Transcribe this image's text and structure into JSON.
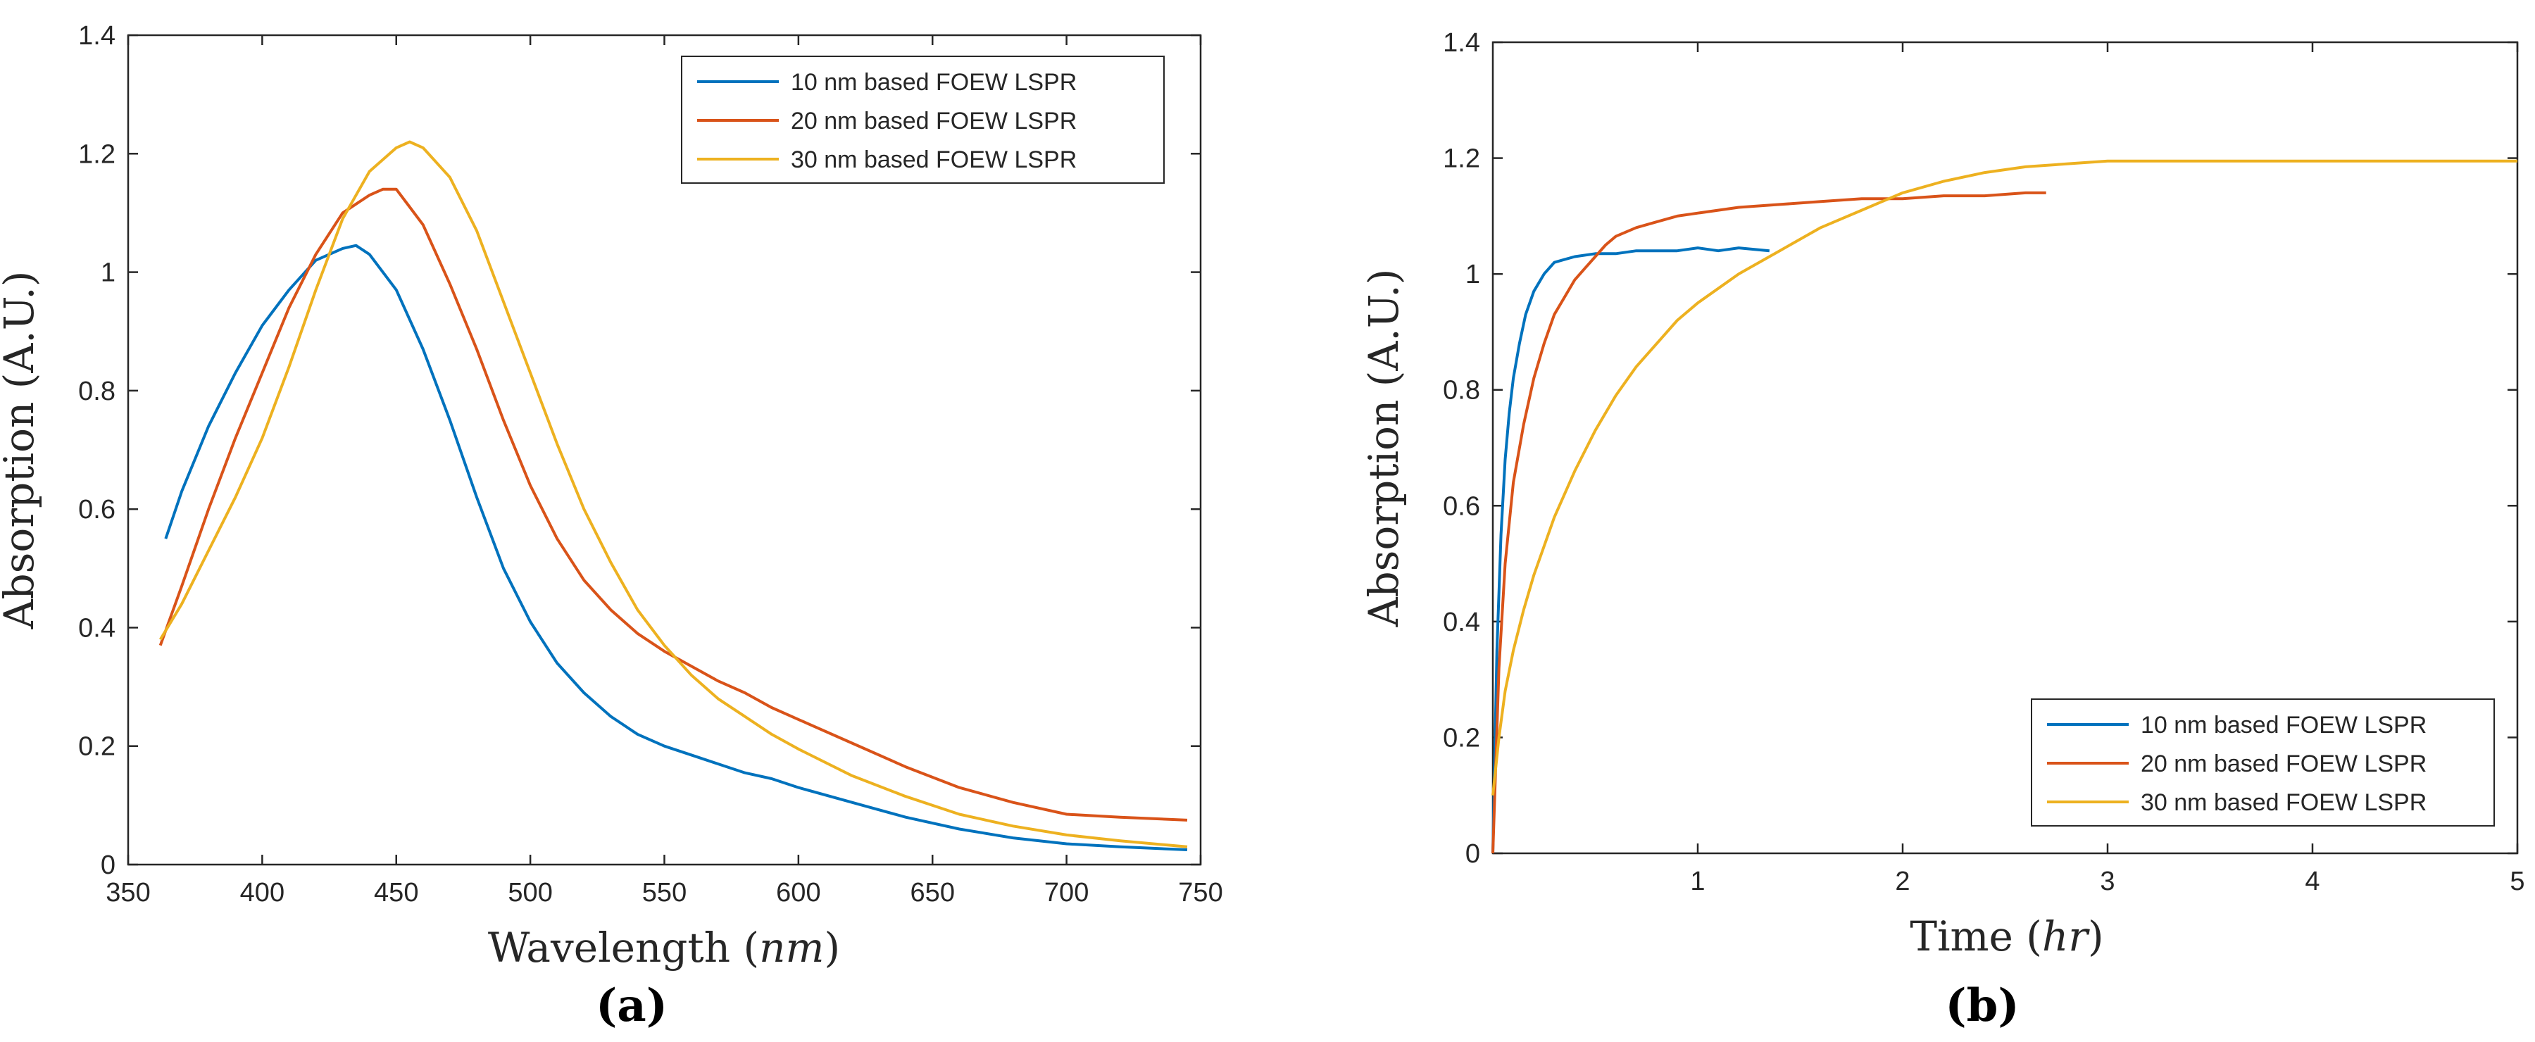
{
  "colors": {
    "s10": "#0072BD",
    "s20": "#D95319",
    "s30": "#EDB120",
    "axis": "#262626"
  },
  "chart_data": [
    {
      "type": "line",
      "panel_label": "(a)",
      "xlabel_main": "Wavelength ",
      "xlabel_unit": "nm",
      "ylabel": "Absorption (A.U.)",
      "xlim": [
        350,
        750
      ],
      "ylim": [
        0,
        1.4
      ],
      "xticks": [
        350,
        400,
        450,
        500,
        550,
        600,
        650,
        700,
        750
      ],
      "xtick_labels": [
        "350",
        "400",
        "450",
        "500",
        "550",
        "600",
        "650",
        "700",
        "750"
      ],
      "yticks": [
        0,
        0.2,
        0.4,
        0.6,
        0.8,
        1.0,
        1.2,
        1.4
      ],
      "ytick_labels": [
        "0",
        "0.2",
        "0.4",
        "0.6",
        "0.8",
        "1",
        "1.2",
        "1.4"
      ],
      "legend_position": "top-right",
      "series": [
        {
          "name": "10 nm based FOEW LSPR",
          "color": "s10",
          "x": [
            364,
            370,
            380,
            390,
            400,
            410,
            420,
            430,
            435,
            440,
            450,
            460,
            470,
            480,
            490,
            500,
            510,
            520,
            530,
            540,
            550,
            560,
            570,
            580,
            590,
            600,
            620,
            640,
            660,
            680,
            700,
            720,
            745
          ],
          "y": [
            0.55,
            0.63,
            0.74,
            0.83,
            0.91,
            0.97,
            1.02,
            1.04,
            1.045,
            1.03,
            0.97,
            0.87,
            0.75,
            0.62,
            0.5,
            0.41,
            0.34,
            0.29,
            0.25,
            0.22,
            0.2,
            0.185,
            0.17,
            0.155,
            0.145,
            0.13,
            0.105,
            0.08,
            0.06,
            0.045,
            0.035,
            0.03,
            0.025
          ]
        },
        {
          "name": "20 nm based FOEW LSPR",
          "color": "s20",
          "x": [
            362,
            370,
            380,
            390,
            400,
            410,
            420,
            430,
            440,
            445,
            450,
            455,
            460,
            470,
            480,
            490,
            500,
            510,
            520,
            530,
            540,
            550,
            560,
            570,
            580,
            590,
            600,
            620,
            640,
            660,
            680,
            700,
            720,
            745
          ],
          "y": [
            0.37,
            0.47,
            0.6,
            0.72,
            0.83,
            0.94,
            1.03,
            1.1,
            1.13,
            1.14,
            1.14,
            1.11,
            1.08,
            0.98,
            0.87,
            0.75,
            0.64,
            0.55,
            0.48,
            0.43,
            0.39,
            0.36,
            0.335,
            0.31,
            0.29,
            0.265,
            0.245,
            0.205,
            0.165,
            0.13,
            0.105,
            0.085,
            0.08,
            0.075
          ]
        },
        {
          "name": "30 nm based FOEW LSPR",
          "color": "s30",
          "x": [
            362,
            370,
            380,
            390,
            400,
            410,
            420,
            430,
            440,
            450,
            455,
            460,
            470,
            480,
            490,
            500,
            510,
            520,
            530,
            540,
            550,
            560,
            570,
            580,
            590,
            600,
            620,
            640,
            660,
            680,
            700,
            720,
            745
          ],
          "y": [
            0.38,
            0.44,
            0.53,
            0.62,
            0.72,
            0.84,
            0.97,
            1.09,
            1.17,
            1.21,
            1.22,
            1.21,
            1.16,
            1.07,
            0.95,
            0.83,
            0.71,
            0.6,
            0.51,
            0.43,
            0.37,
            0.32,
            0.28,
            0.25,
            0.22,
            0.195,
            0.15,
            0.115,
            0.085,
            0.065,
            0.05,
            0.04,
            0.03
          ]
        }
      ]
    },
    {
      "type": "line",
      "panel_label": "(b)",
      "xlabel_main": "Time ",
      "xlabel_unit": "hr",
      "ylabel": "Absorption (A.U.)",
      "xlim": [
        0,
        5
      ],
      "ylim": [
        0,
        1.4
      ],
      "xticks": [
        1,
        2,
        3,
        4,
        5
      ],
      "xtick_labels": [
        "1",
        "2",
        "3",
        "4",
        "5"
      ],
      "yticks": [
        0,
        0.2,
        0.4,
        0.6,
        0.8,
        1.0,
        1.2,
        1.4
      ],
      "ytick_labels": [
        "0",
        "0.2",
        "0.4",
        "0.6",
        "0.8",
        "1",
        "1.2",
        "1.4"
      ],
      "legend_position": "bottom-right",
      "series": [
        {
          "name": "10 nm based FOEW LSPR",
          "color": "s10",
          "x": [
            0,
            0.02,
            0.04,
            0.06,
            0.08,
            0.1,
            0.13,
            0.16,
            0.2,
            0.25,
            0.3,
            0.35,
            0.4,
            0.5,
            0.6,
            0.7,
            0.8,
            0.9,
            1.0,
            1.1,
            1.2,
            1.35
          ],
          "y": [
            0.0,
            0.35,
            0.55,
            0.68,
            0.76,
            0.82,
            0.88,
            0.93,
            0.97,
            1.0,
            1.02,
            1.025,
            1.03,
            1.035,
            1.035,
            1.04,
            1.04,
            1.04,
            1.045,
            1.04,
            1.045,
            1.04
          ]
        },
        {
          "name": "20 nm based FOEW LSPR",
          "color": "s20",
          "x": [
            0,
            0.03,
            0.06,
            0.1,
            0.15,
            0.2,
            0.25,
            0.3,
            0.35,
            0.4,
            0.45,
            0.5,
            0.55,
            0.6,
            0.7,
            0.8,
            0.9,
            1.0,
            1.2,
            1.4,
            1.6,
            1.8,
            2.0,
            2.2,
            2.4,
            2.6,
            2.7
          ],
          "y": [
            0.0,
            0.32,
            0.5,
            0.64,
            0.74,
            0.82,
            0.88,
            0.93,
            0.96,
            0.99,
            1.01,
            1.03,
            1.05,
            1.065,
            1.08,
            1.09,
            1.1,
            1.105,
            1.115,
            1.12,
            1.125,
            1.13,
            1.13,
            1.135,
            1.135,
            1.14,
            1.14
          ]
        },
        {
          "name": "30 nm based FOEW LSPR",
          "color": "s30",
          "x": [
            0,
            0.03,
            0.06,
            0.1,
            0.15,
            0.2,
            0.3,
            0.4,
            0.5,
            0.6,
            0.7,
            0.8,
            0.9,
            1.0,
            1.2,
            1.4,
            1.6,
            1.8,
            2.0,
            2.2,
            2.4,
            2.6,
            2.8,
            3.0,
            3.5,
            4.0,
            4.5,
            5.0
          ],
          "y": [
            0.1,
            0.2,
            0.28,
            0.35,
            0.42,
            0.48,
            0.58,
            0.66,
            0.73,
            0.79,
            0.84,
            0.88,
            0.92,
            0.95,
            1.0,
            1.04,
            1.08,
            1.11,
            1.14,
            1.16,
            1.175,
            1.185,
            1.19,
            1.195,
            1.195,
            1.195,
            1.195,
            1.195
          ]
        }
      ]
    }
  ]
}
